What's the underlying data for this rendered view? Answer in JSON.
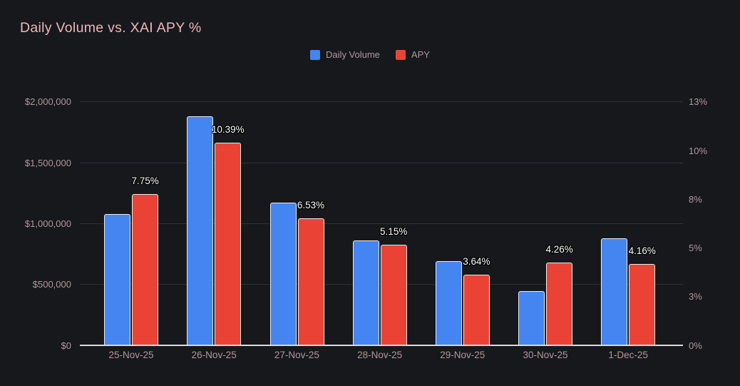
{
  "title": "Daily Volume vs. XAI APY %",
  "legend": [
    {
      "label": "Daily Volume",
      "color": "#4485f1"
    },
    {
      "label": "APY",
      "color": "#ea4335"
    }
  ],
  "colors": {
    "background": "#16181c",
    "title_text": "#f0b4b8",
    "axis_text": "#b2989b",
    "gridline": "#2d3035",
    "baseline": "#d9dadb",
    "bar_border": "#ececec",
    "data_label_text": "#ffffff",
    "volume_bar": "#4485f1",
    "apy_bar": "#ea4335"
  },
  "chart_data": {
    "type": "bar",
    "title": "Daily Volume vs. XAI APY %",
    "categories": [
      "25-Nov-25",
      "26-Nov-25",
      "27-Nov-25",
      "28-Nov-25",
      "29-Nov-25",
      "30-Nov-25",
      "1-Dec-25"
    ],
    "series": [
      {
        "name": "Daily Volume",
        "axis": "left",
        "color": "#4485f1",
        "values": [
          1080000,
          1880000,
          1175000,
          860000,
          690000,
          445000,
          880000
        ]
      },
      {
        "name": "APY",
        "axis": "right",
        "color": "#ea4335",
        "values": [
          7.75,
          10.39,
          6.53,
          5.15,
          3.64,
          4.26,
          4.16
        ],
        "data_labels": [
          "7.75%",
          "10.39%",
          "6.53%",
          "5.15%",
          "3.64%",
          "4.26%",
          "4.16%"
        ]
      }
    ],
    "left_axis": {
      "tick_labels": [
        "$0",
        "$500,000",
        "$1,000,000",
        "$1,500,000",
        "$2,000,000"
      ],
      "range": [
        0,
        2000000
      ]
    },
    "right_axis": {
      "tick_labels": [
        "0%",
        "3%",
        "5%",
        "8%",
        "10%",
        "13%"
      ],
      "range": [
        0,
        12.5
      ]
    },
    "grid": true,
    "legend_position": "top"
  }
}
